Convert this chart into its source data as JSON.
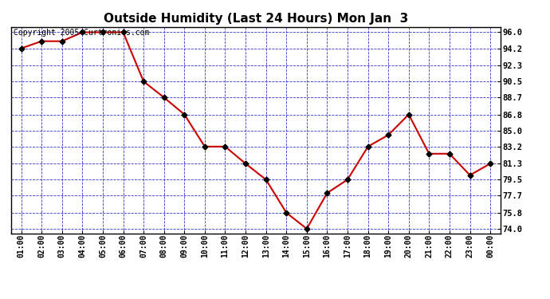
{
  "title": "Outside Humidity (Last 24 Hours) Mon Jan  3",
  "copyright": "Copyright 2005 Curtronics.com",
  "x_labels": [
    "01:00",
    "02:00",
    "03:00",
    "04:00",
    "05:00",
    "06:00",
    "07:00",
    "08:00",
    "09:00",
    "10:00",
    "11:00",
    "12:00",
    "13:00",
    "14:00",
    "15:00",
    "16:00",
    "17:00",
    "18:00",
    "19:00",
    "20:00",
    "21:00",
    "22:00",
    "23:00",
    "00:00"
  ],
  "y_values": [
    94.2,
    95.0,
    95.0,
    96.0,
    96.0,
    96.0,
    90.5,
    88.7,
    86.8,
    83.2,
    83.2,
    81.3,
    79.5,
    75.8,
    74.0,
    78.0,
    79.5,
    83.2,
    84.5,
    86.8,
    82.4,
    82.4,
    80.0,
    81.3
  ],
  "y_ticks": [
    74.0,
    75.8,
    77.7,
    79.5,
    81.3,
    83.2,
    85.0,
    86.8,
    88.7,
    90.5,
    92.3,
    94.2,
    96.0
  ],
  "ylim": [
    73.5,
    96.6
  ],
  "line_color": "#cc0000",
  "marker_color": "#000000",
  "fig_bg_color": "#ffffff",
  "plot_bg_color": "#ffffff",
  "grid_color": "#3333cc",
  "title_fontsize": 11,
  "copyright_fontsize": 7
}
